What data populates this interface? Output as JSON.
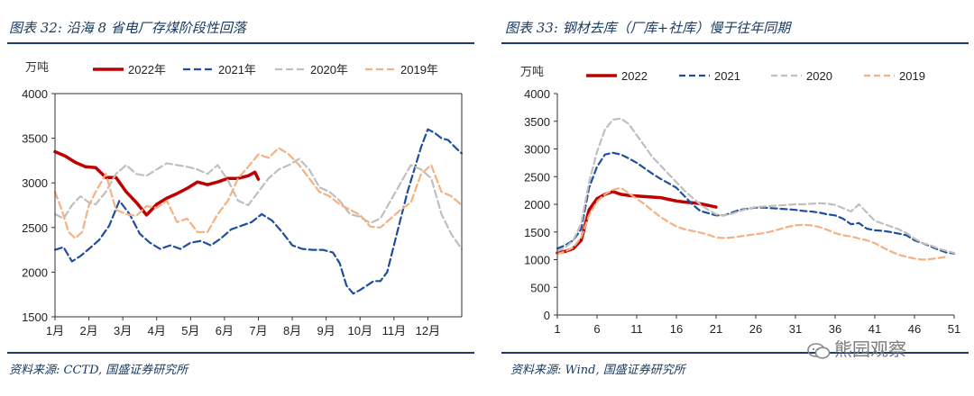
{
  "left": {
    "title": "图表 32:  沿海 8 省电厂存煤阶段性回落",
    "source": "资料来源:  CCTD,  国盛证券研究所"
  },
  "right": {
    "title": "图表 33:  钢材去库（厂库+社库）慢于往年同期",
    "source": "资料来源:  Wind,  国盛证券研究所"
  },
  "watermark": "熊园观察",
  "colors": {
    "s2022": "#c00000",
    "s2021": "#1f4e9e",
    "s2020": "#bfbfbf",
    "s2019": "#f4b183",
    "rule": "#1f3a73"
  },
  "chart_data": [
    {
      "type": "line",
      "title": "沿海 8 省电厂存煤阶段性回落",
      "ylabel": "万吨",
      "ylim": [
        1500,
        4000
      ],
      "yticks": [
        1500,
        2000,
        2500,
        3000,
        3500,
        4000
      ],
      "xlim": [
        0,
        12
      ],
      "xtick_positions": [
        0,
        1,
        2,
        3,
        4,
        5,
        6,
        7,
        8,
        9,
        10,
        11
      ],
      "xtick_labels": [
        "1月",
        "2月",
        "3月",
        "4月",
        "5月",
        "6月",
        "7月",
        "8月",
        "9月",
        "10月",
        "11月",
        "12月"
      ],
      "series": [
        {
          "name": "2022年",
          "key": "s2022",
          "dash": "none",
          "width": 3.5,
          "x": [
            0,
            0.3,
            0.6,
            0.9,
            1.2,
            1.5,
            1.8,
            2.1,
            2.4,
            2.7,
            3.0,
            3.3,
            3.6,
            3.9,
            4.2,
            4.5,
            4.8,
            5.1,
            5.4,
            5.7,
            5.9,
            6.0
          ],
          "y": [
            3350,
            3300,
            3230,
            3180,
            3170,
            3060,
            3060,
            2900,
            2780,
            2640,
            2760,
            2830,
            2880,
            2940,
            3010,
            2980,
            3010,
            3050,
            3050,
            3080,
            3120,
            3040
          ]
        },
        {
          "name": "2021年",
          "key": "s2021",
          "dash": "8,4",
          "width": 2.2,
          "x": [
            0,
            0.25,
            0.5,
            0.75,
            1.0,
            1.3,
            1.6,
            1.9,
            2.2,
            2.5,
            2.8,
            3.1,
            3.4,
            3.7,
            4.0,
            4.3,
            4.6,
            4.9,
            5.2,
            5.5,
            5.8,
            6.1,
            6.4,
            6.7,
            7.0,
            7.3,
            7.6,
            7.9,
            8.2,
            8.4,
            8.6,
            8.8,
            9.0,
            9.2,
            9.4,
            9.6,
            9.8,
            10.0,
            10.2,
            10.4,
            10.6,
            10.8,
            11.0,
            11.2,
            11.4,
            11.6,
            11.8,
            12.0
          ],
          "y": [
            2250,
            2280,
            2120,
            2180,
            2260,
            2360,
            2520,
            2800,
            2650,
            2430,
            2330,
            2260,
            2300,
            2260,
            2330,
            2350,
            2300,
            2380,
            2480,
            2520,
            2560,
            2650,
            2580,
            2450,
            2300,
            2260,
            2250,
            2250,
            2220,
            2100,
            1850,
            1760,
            1800,
            1850,
            1900,
            1900,
            2000,
            2300,
            2600,
            2900,
            3150,
            3400,
            3600,
            3560,
            3500,
            3480,
            3400,
            3330
          ]
        },
        {
          "name": "2020年",
          "key": "s2020",
          "dash": "8,4",
          "width": 2.2,
          "x": [
            0,
            0.25,
            0.5,
            0.75,
            1.0,
            1.2,
            1.5,
            1.8,
            2.1,
            2.4,
            2.7,
            3.0,
            3.3,
            3.6,
            3.9,
            4.2,
            4.5,
            4.8,
            5.1,
            5.4,
            5.7,
            6.0,
            6.3,
            6.6,
            6.9,
            7.2,
            7.5,
            7.8,
            8.1,
            8.4,
            8.7,
            9.0,
            9.3,
            9.6,
            9.9,
            10.2,
            10.5,
            10.8,
            11.1,
            11.4,
            11.7,
            12.0
          ],
          "y": [
            2650,
            2600,
            2750,
            2850,
            2780,
            2760,
            2900,
            3100,
            3200,
            3100,
            3080,
            3150,
            3220,
            3200,
            3180,
            3150,
            3100,
            3200,
            3030,
            2800,
            2750,
            2900,
            3050,
            3150,
            3200,
            3270,
            3150,
            2950,
            2900,
            2800,
            2650,
            2620,
            2550,
            2600,
            2800,
            3000,
            3200,
            3150,
            3050,
            2650,
            2420,
            2260
          ]
        },
        {
          "name": "2019年",
          "key": "s2019",
          "dash": "8,4",
          "width": 2.2,
          "x": [
            0,
            0.2,
            0.4,
            0.6,
            0.8,
            1.0,
            1.2,
            1.5,
            1.8,
            2.1,
            2.4,
            2.7,
            3.0,
            3.3,
            3.6,
            3.9,
            4.2,
            4.5,
            4.8,
            5.1,
            5.4,
            5.7,
            6.0,
            6.3,
            6.6,
            6.9,
            7.2,
            7.5,
            7.8,
            8.1,
            8.4,
            8.7,
            9.0,
            9.3,
            9.6,
            9.9,
            10.2,
            10.5,
            10.8,
            11.1,
            11.4,
            11.7,
            12.0
          ],
          "y": [
            2900,
            2700,
            2450,
            2380,
            2450,
            2750,
            2900,
            3100,
            2700,
            2650,
            2630,
            2740,
            2720,
            2800,
            2560,
            2600,
            2450,
            2450,
            2650,
            2800,
            3050,
            3180,
            3320,
            3280,
            3390,
            3320,
            3200,
            3050,
            2900,
            2850,
            2760,
            2700,
            2640,
            2510,
            2500,
            2600,
            2700,
            2780,
            3100,
            3200,
            2900,
            2850,
            2750
          ]
        }
      ]
    },
    {
      "type": "line",
      "title": "钢材去库（厂库+社库）慢于往年同期",
      "ylabel": "万吨",
      "ylim": [
        0,
        4000
      ],
      "yticks": [
        0,
        500,
        1000,
        1500,
        2000,
        2500,
        3000,
        3500,
        4000
      ],
      "xlim": [
        1,
        51
      ],
      "xticks": [
        1,
        6,
        11,
        16,
        21,
        26,
        31,
        36,
        41,
        46,
        51
      ],
      "series": [
        {
          "name": "2022",
          "key": "s2022",
          "dash": "none",
          "width": 3.5,
          "x": [
            1,
            2,
            3,
            4,
            5,
            6,
            7,
            8,
            9,
            10,
            11,
            12,
            13,
            14,
            15,
            16,
            17,
            18,
            19,
            20,
            21
          ],
          "y": [
            1120,
            1150,
            1200,
            1350,
            1900,
            2100,
            2180,
            2230,
            2180,
            2160,
            2150,
            2140,
            2130,
            2120,
            2090,
            2060,
            2040,
            2030,
            2010,
            1980,
            1950
          ]
        },
        {
          "name": "2021",
          "key": "s2021",
          "dash": "7,4",
          "width": 2.2,
          "x": [
            1,
            2,
            3,
            4,
            5,
            6,
            7,
            8,
            9,
            10,
            11,
            12,
            13,
            14,
            15,
            16,
            17,
            18,
            19,
            20,
            21,
            22,
            23,
            24,
            25,
            26,
            27,
            28,
            29,
            30,
            31,
            32,
            33,
            34,
            35,
            36,
            37,
            38,
            39,
            40,
            41,
            42,
            43,
            44,
            45,
            46,
            47,
            48,
            49,
            50,
            51
          ],
          "y": [
            1200,
            1260,
            1350,
            1550,
            2300,
            2680,
            2900,
            2930,
            2900,
            2830,
            2750,
            2650,
            2550,
            2460,
            2380,
            2300,
            2150,
            2000,
            1880,
            1840,
            1800,
            1800,
            1850,
            1900,
            1920,
            1940,
            1940,
            1930,
            1920,
            1910,
            1900,
            1880,
            1870,
            1850,
            1820,
            1800,
            1740,
            1640,
            1660,
            1560,
            1530,
            1520,
            1500,
            1470,
            1440,
            1350,
            1300,
            1240,
            1180,
            1130,
            1110
          ]
        },
        {
          "name": "2020",
          "key": "s2020",
          "dash": "7,4",
          "width": 2.2,
          "x": [
            1,
            2,
            3,
            4,
            5,
            6,
            7,
            8,
            9,
            10,
            11,
            12,
            13,
            14,
            15,
            16,
            17,
            18,
            19,
            20,
            21,
            22,
            23,
            24,
            25,
            26,
            27,
            28,
            29,
            30,
            31,
            32,
            33,
            34,
            35,
            36,
            37,
            38,
            39,
            40,
            41,
            42,
            43,
            44,
            45,
            46,
            47,
            48,
            49,
            50,
            51
          ],
          "y": [
            1150,
            1220,
            1350,
            1650,
            2400,
            2950,
            3350,
            3530,
            3550,
            3450,
            3250,
            3050,
            2850,
            2700,
            2550,
            2400,
            2250,
            2120,
            2000,
            1900,
            1820,
            1800,
            1830,
            1880,
            1920,
            1950,
            1960,
            1970,
            1980,
            1990,
            2000,
            2000,
            2010,
            2020,
            2010,
            1990,
            1930,
            1870,
            2000,
            1850,
            1700,
            1650,
            1600,
            1550,
            1480,
            1380,
            1300,
            1260,
            1200,
            1160,
            1120
          ]
        },
        {
          "name": "2019",
          "key": "s2019",
          "dash": "7,4",
          "width": 2.2,
          "x": [
            1,
            2,
            3,
            4,
            5,
            6,
            7,
            8,
            9,
            10,
            11,
            12,
            13,
            14,
            15,
            16,
            17,
            18,
            19,
            20,
            21,
            22,
            23,
            24,
            25,
            26,
            27,
            28,
            29,
            30,
            31,
            32,
            33,
            34,
            35,
            36,
            37,
            38,
            39,
            40,
            41,
            42,
            43,
            44,
            45,
            46,
            47,
            48,
            49,
            50
          ],
          "y": [
            1100,
            1150,
            1220,
            1400,
            1800,
            2050,
            2180,
            2260,
            2300,
            2200,
            2100,
            2000,
            1880,
            1770,
            1680,
            1600,
            1550,
            1520,
            1490,
            1450,
            1400,
            1390,
            1400,
            1420,
            1440,
            1460,
            1480,
            1510,
            1550,
            1590,
            1620,
            1630,
            1620,
            1590,
            1540,
            1480,
            1440,
            1420,
            1380,
            1350,
            1300,
            1220,
            1150,
            1090,
            1050,
            1020,
            1000,
            1010,
            1030,
            1050
          ]
        }
      ]
    }
  ]
}
